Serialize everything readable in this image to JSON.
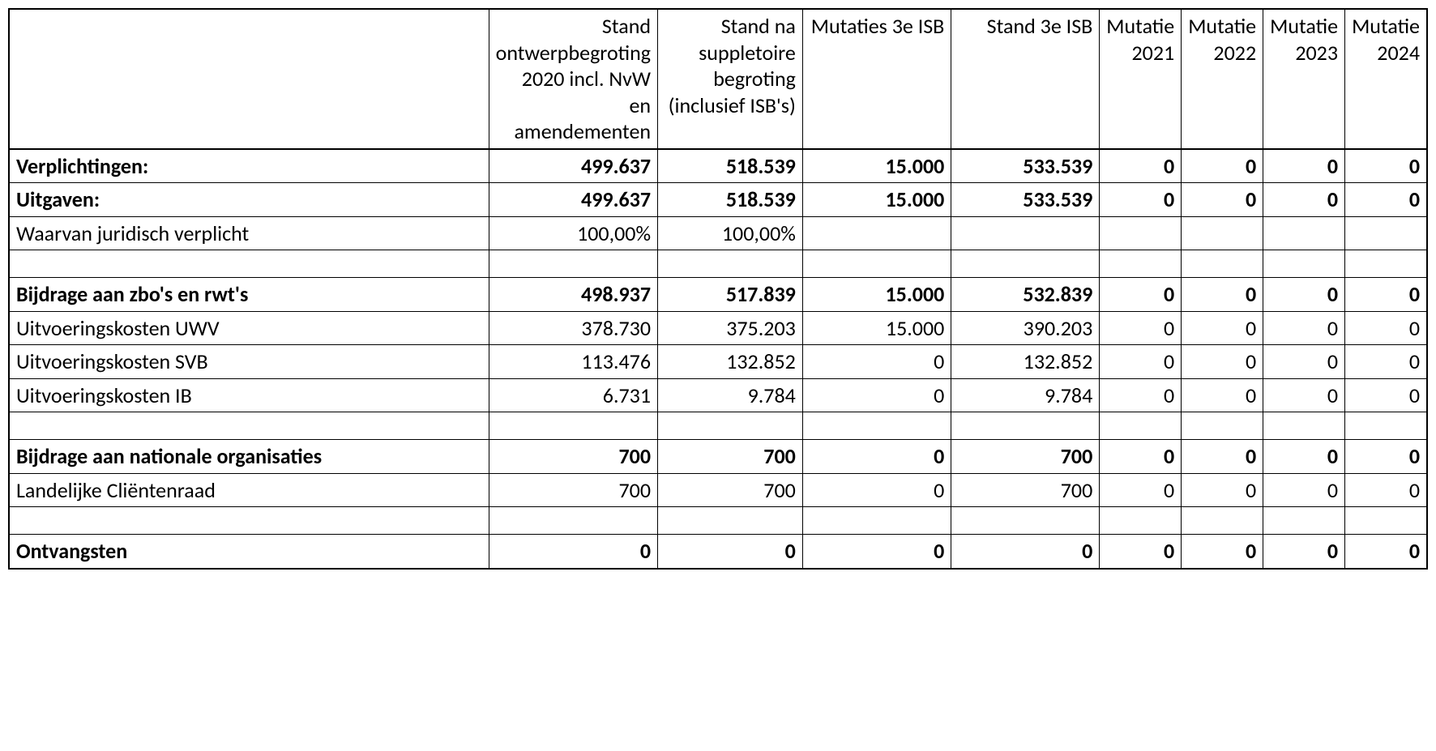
{
  "table": {
    "type": "table",
    "background_color": "#ffffff",
    "border_color": "#000000",
    "font_family": "Calibri, Arial, sans-serif",
    "header_fontsize": 26,
    "body_fontsize": 26,
    "columns": [
      {
        "id": "label",
        "header": "",
        "width_pct": 35.5,
        "align": "left"
      },
      {
        "id": "c1",
        "header": "Stand ontwerpbegroting 2020 incl. NvW en amendementen",
        "width_pct": 11.7,
        "align": "right"
      },
      {
        "id": "c2",
        "header": "Stand na suppletoire begroting (inclusief ISB's)",
        "width_pct": 10.4,
        "align": "right"
      },
      {
        "id": "c3",
        "header": "Mutaties 3e ISB",
        "width_pct": 10.8,
        "align": "right"
      },
      {
        "id": "c4",
        "header": "Stand 3e ISB",
        "width_pct": 10.8,
        "align": "right"
      },
      {
        "id": "c5",
        "header": "Mutatie 2021",
        "width_pct": 5.2,
        "align": "right"
      },
      {
        "id": "c6",
        "header": "Mutatie 2022",
        "width_pct": 5.2,
        "align": "right"
      },
      {
        "id": "c7",
        "header": "Mutatie 2023",
        "width_pct": 5.2,
        "align": "right"
      },
      {
        "id": "c8",
        "header": "Mutatie 2024",
        "width_pct": 5.2,
        "align": "right"
      }
    ],
    "rows": [
      {
        "bold": true,
        "cells": [
          "Verplichtingen:",
          "499.637",
          "518.539",
          "15.000",
          "533.539",
          "0",
          "0",
          "0",
          "0"
        ]
      },
      {
        "bold": true,
        "cells": [
          "Uitgaven:",
          "499.637",
          "518.539",
          "15.000",
          "533.539",
          "0",
          "0",
          "0",
          "0"
        ]
      },
      {
        "bold": false,
        "cells": [
          "Waarvan juridisch verplicht",
          "100,00%",
          "100,00%",
          "",
          "",
          "",
          "",
          "",
          ""
        ]
      },
      {
        "empty": true,
        "cells": [
          "",
          "",
          "",
          "",
          "",
          "",
          "",
          "",
          ""
        ]
      },
      {
        "bold": true,
        "cells": [
          "Bijdrage aan zbo's en rwt's",
          "498.937",
          "517.839",
          "15.000",
          "532.839",
          "0",
          "0",
          "0",
          "0"
        ]
      },
      {
        "bold": false,
        "cells": [
          "Uitvoeringskosten UWV",
          "378.730",
          "375.203",
          "15.000",
          "390.203",
          "0",
          "0",
          "0",
          "0"
        ]
      },
      {
        "bold": false,
        "cells": [
          "Uitvoeringskosten SVB",
          "113.476",
          "132.852",
          "0",
          "132.852",
          "0",
          "0",
          "0",
          "0"
        ]
      },
      {
        "bold": false,
        "cells": [
          "Uitvoeringskosten IB",
          "6.731",
          "9.784",
          "0",
          "9.784",
          "0",
          "0",
          "0",
          "0"
        ]
      },
      {
        "empty": true,
        "cells": [
          "",
          "",
          "",
          "",
          "",
          "",
          "",
          "",
          ""
        ]
      },
      {
        "bold": true,
        "cells": [
          "Bijdrage aan nationale organisaties",
          "700",
          "700",
          "0",
          "700",
          "0",
          "0",
          "0",
          "0"
        ]
      },
      {
        "bold": false,
        "cells": [
          "Landelijke Cliëntenraad",
          "700",
          "700",
          "0",
          "700",
          "0",
          "0",
          "0",
          "0"
        ]
      },
      {
        "empty": true,
        "cells": [
          "",
          "",
          "",
          "",
          "",
          "",
          "",
          "",
          ""
        ]
      },
      {
        "bold": true,
        "cells": [
          "Ontvangsten",
          "0",
          "0",
          "0",
          "0",
          "0",
          "0",
          "0",
          "0"
        ]
      }
    ]
  }
}
